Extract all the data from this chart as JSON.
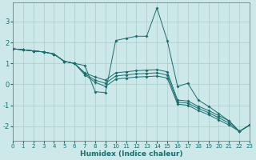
{
  "xlabel": "Humidex (Indice chaleur)",
  "ylabel": "",
  "background_color": "#cce8e8",
  "grid_color": "#aacccc",
  "line_color": "#1a6e6e",
  "xlim": [
    0,
    23
  ],
  "ylim": [
    -2.7,
    3.9
  ],
  "yticks": [
    -2,
    -1,
    0,
    1,
    2,
    3
  ],
  "xticks": [
    0,
    1,
    2,
    3,
    4,
    5,
    6,
    7,
    8,
    9,
    10,
    11,
    12,
    13,
    14,
    15,
    16,
    17,
    18,
    19,
    20,
    21,
    22,
    23
  ],
  "lines": [
    [
      1.7,
      1.65,
      1.6,
      1.55,
      1.45,
      1.1,
      1.0,
      0.9,
      -0.35,
      -0.4,
      2.1,
      2.2,
      2.3,
      2.3,
      3.65,
      2.1,
      -0.1,
      0.05,
      -0.75,
      -1.05,
      -1.4,
      -1.75,
      -2.25,
      -1.95
    ],
    [
      1.7,
      1.65,
      1.6,
      1.55,
      1.45,
      1.1,
      1.0,
      0.55,
      0.35,
      0.2,
      0.55,
      0.6,
      0.65,
      0.68,
      0.7,
      0.6,
      -0.75,
      -0.8,
      -1.05,
      -1.25,
      -1.5,
      -1.75,
      -2.25,
      -1.95
    ],
    [
      1.7,
      1.65,
      1.6,
      1.55,
      1.45,
      1.1,
      1.0,
      0.5,
      0.2,
      0.05,
      0.4,
      0.45,
      0.5,
      0.52,
      0.55,
      0.45,
      -0.85,
      -0.9,
      -1.15,
      -1.35,
      -1.6,
      -1.85,
      -2.25,
      -1.95
    ],
    [
      1.7,
      1.65,
      1.6,
      1.55,
      1.45,
      1.1,
      1.0,
      0.45,
      0.1,
      -0.1,
      0.25,
      0.3,
      0.35,
      0.37,
      0.4,
      0.3,
      -0.95,
      -1.0,
      -1.25,
      -1.45,
      -1.7,
      -1.95,
      -2.25,
      -1.95
    ]
  ]
}
